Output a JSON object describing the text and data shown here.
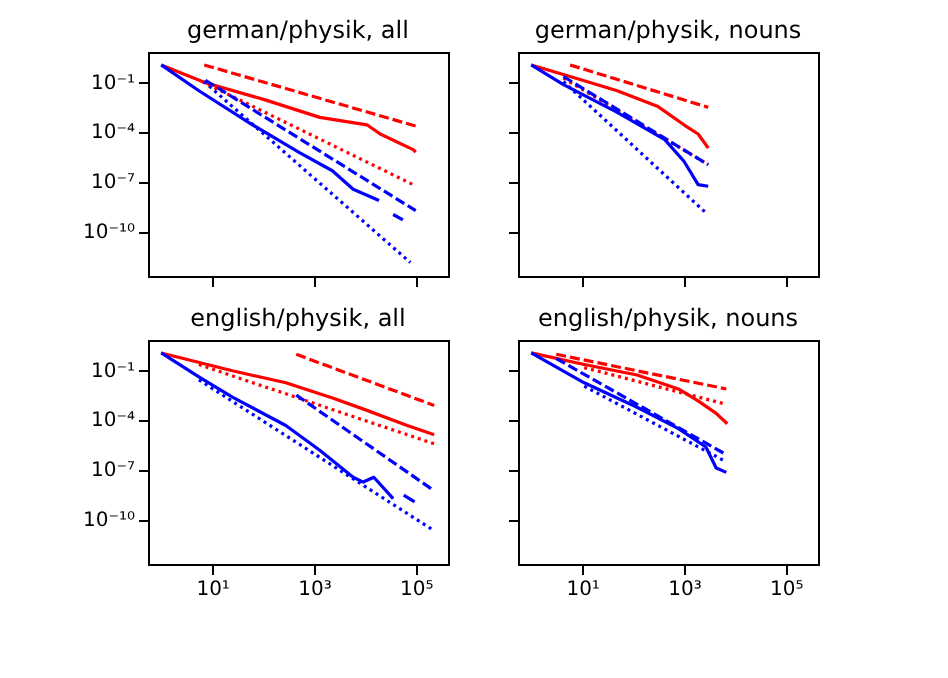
{
  "chart_data": [
    {
      "type": "line",
      "title": "german/physik, all",
      "log": "xy",
      "xlim": [
        0.55,
        430000
      ],
      "ylim": [
        2e-13,
        6
      ],
      "xticks": [
        {
          "value": 10,
          "label": null
        },
        {
          "value": 1000,
          "label": null
        },
        {
          "value": 100000,
          "label": null
        }
      ],
      "yticks": [
        {
          "value": 0.1,
          "label": "10⁻¹"
        },
        {
          "value": 0.0001,
          "label": "10⁻⁴"
        },
        {
          "value": 1e-07,
          "label": "10⁻⁷"
        },
        {
          "value": 1e-10,
          "label": "10⁻¹⁰"
        }
      ],
      "tick_labels": "y",
      "series": [
        {
          "color": "#ff0000",
          "line_style": "solid",
          "x": [
            1,
            7.4,
            110,
            1300,
            11000,
            20000,
            89000,
            100000
          ],
          "values": [
            1,
            0.085,
            0.0079,
            0.0007,
            0.00025,
            7e-05,
            8e-06,
            5.6e-06
          ]
        },
        {
          "color": "#ff0000",
          "line_style": "dashed",
          "x": [
            7,
            100000
          ],
          "values": [
            1,
            0.00021
          ]
        },
        {
          "color": "#ff0000",
          "line_style": "dotted",
          "x": [
            6.3,
            89000
          ],
          "values": [
            0.1,
            6.3e-08
          ]
        },
        {
          "color": "#0000ff",
          "line_style": "solid",
          "x": [
            1,
            5.5,
            62,
            510,
            2300,
            5900,
            19000
          ],
          "values": [
            1,
            0.028,
            0.00025,
            5.5e-06,
            4.3e-07,
            3.3e-08,
            7e-09
          ]
        },
        {
          "color": "#0000ff",
          "line_style": "dashed",
          "x": [
            7.4,
            100000
          ],
          "values": [
            0.12,
            1.7e-09
          ]
        },
        {
          "color": "#0000ff",
          "line_style": "dotted",
          "x": [
            6.9,
            78000
          ],
          "values": [
            0.1,
            1.3e-12
          ]
        },
        {
          "color": "#0000ff",
          "line_style": "solid",
          "x": [
            36000,
            56000
          ],
          "values": [
            1e-09,
            4.7e-10
          ]
        }
      ]
    },
    {
      "type": "line",
      "title": "german/physik, nouns",
      "log": "xy",
      "xlim": [
        0.55,
        430000
      ],
      "ylim": [
        2e-13,
        6
      ],
      "xticks": [
        {
          "value": 10,
          "label": null
        },
        {
          "value": 1000,
          "label": null
        },
        {
          "value": 100000,
          "label": null
        }
      ],
      "yticks": [
        {
          "value": 0.1,
          "label": null
        },
        {
          "value": 0.0001,
          "label": null
        },
        {
          "value": 1e-07,
          "label": null
        },
        {
          "value": 1e-10,
          "label": null
        }
      ],
      "tick_labels": false,
      "series": [
        {
          "color": "#ff0000",
          "line_style": "solid",
          "x": [
            1,
            5.8,
            49,
            300,
            1000,
            1900,
            3000
          ],
          "values": [
            1,
            0.2,
            0.028,
            0.0033,
            0.00025,
            7e-05,
            1e-05
          ]
        },
        {
          "color": "#ff0000",
          "line_style": "dashed",
          "x": [
            5.8,
            3000
          ],
          "values": [
            1,
            0.0028
          ]
        },
        {
          "color": "#ff0000",
          "line_style": "dotted",
          "x": [
            4.3,
            3000
          ],
          "values": [
            0.16,
            1e-06
          ]
        },
        {
          "color": "#0000ff",
          "line_style": "solid",
          "x": [
            1,
            4.3,
            49,
            420,
            1000,
            1900,
            3000
          ],
          "values": [
            1,
            0.066,
            0.0014,
            3.2e-05,
            1.6e-06,
            6.3e-08,
            5e-08
          ]
        },
        {
          "color": "#0000ff",
          "line_style": "dashed",
          "x": [
            4.3,
            3000
          ],
          "values": [
            0.2,
            1e-06
          ]
        },
        {
          "color": "#0000ff",
          "line_style": "dotted",
          "x": [
            4.3,
            2600
          ],
          "values": [
            0.1,
            1.4e-09
          ]
        }
      ]
    },
    {
      "type": "line",
      "title": "english/physik, all",
      "log": "xy",
      "xlim": [
        0.55,
        430000
      ],
      "ylim": [
        2e-13,
        6
      ],
      "xticks": [
        {
          "value": 10,
          "label": "10¹"
        },
        {
          "value": 1000,
          "label": "10³"
        },
        {
          "value": 100000,
          "label": "10⁵"
        }
      ],
      "yticks": [
        {
          "value": 0.1,
          "label": "10⁻¹"
        },
        {
          "value": 0.0001,
          "label": "10⁻⁴"
        },
        {
          "value": 1e-07,
          "label": "10⁻⁷"
        },
        {
          "value": 1e-10,
          "label": "10⁻¹⁰"
        }
      ],
      "series": [
        {
          "color": "#ff0000",
          "line_style": "solid",
          "x": [
            1,
            25,
            280,
            2400,
            11000,
            68000,
            230000
          ],
          "values": [
            1,
            0.085,
            0.016,
            0.0019,
            0.00035,
            4.3e-05,
            1.2e-05
          ]
        },
        {
          "color": "#ff0000",
          "line_style": "dashed",
          "x": [
            450,
            230000
          ],
          "values": [
            0.83,
            0.00069
          ]
        },
        {
          "color": "#ff0000",
          "line_style": "dotted",
          "x": [
            5.5,
            230000
          ],
          "values": [
            0.2,
            3.4e-06
          ]
        },
        {
          "color": "#0000ff",
          "line_style": "solid",
          "x": [
            1,
            5.5,
            25,
            280,
            1300,
            5900,
            9300,
            15000,
            36000
          ],
          "values": [
            1,
            0.036,
            0.0022,
            4.3e-05,
            1.4e-06,
            3.3e-08,
            1.7e-08,
            3.3e-08,
            1.7e-09
          ]
        },
        {
          "color": "#0000ff",
          "line_style": "dashed",
          "x": [
            450,
            230000
          ],
          "values": [
            0.0029,
            5.1e-09
          ]
        },
        {
          "color": "#0000ff",
          "line_style": "dotted",
          "x": [
            5.5,
            230000
          ],
          "values": [
            0.024,
            2e-11
          ]
        },
        {
          "color": "#0000ff",
          "line_style": "solid",
          "x": [
            58000,
            95000
          ],
          "values": [
            2.8e-09,
            1.1e-09
          ]
        }
      ]
    },
    {
      "type": "line",
      "title": "english/physik, nouns",
      "log": "xy",
      "xlim": [
        0.55,
        430000
      ],
      "ylim": [
        2e-13,
        6
      ],
      "xticks": [
        {
          "value": 10,
          "label": "10¹"
        },
        {
          "value": 1000,
          "label": "10³"
        },
        {
          "value": 100000,
          "label": "10⁵"
        }
      ],
      "yticks": [
        {
          "value": 0.1,
          "label": null
        },
        {
          "value": 0.0001,
          "label": null
        },
        {
          "value": 1e-07,
          "label": null
        },
        {
          "value": 1e-10,
          "label": null
        }
      ],
      "tick_labels": "x",
      "series": [
        {
          "color": "#ff0000",
          "line_style": "solid",
          "x": [
            1,
            11,
            120,
            780,
            1900,
            4300,
            7100
          ],
          "values": [
            1,
            0.2,
            0.047,
            0.0068,
            0.0013,
            0.00023,
            5.5e-05
          ]
        },
        {
          "color": "#ff0000",
          "line_style": "dashed",
          "x": [
            3.1,
            6800
          ],
          "values": [
            0.83,
            0.0068
          ]
        },
        {
          "color": "#ff0000",
          "line_style": "dotted",
          "x": [
            11,
            6800
          ],
          "values": [
            0.13,
            0.00081
          ]
        },
        {
          "color": "#0000ff",
          "line_style": "solid",
          "x": [
            1,
            11,
            120,
            780,
            2700,
            4300,
            6800
          ],
          "values": [
            1,
            0.016,
            0.00054,
            2.8e-05,
            2.2e-06,
            1.2e-07,
            6.5e-08
          ]
        },
        {
          "color": "#0000ff",
          "line_style": "dashed",
          "x": [
            3.1,
            6800
          ],
          "values": [
            0.46,
            7.6e-07
          ]
        },
        {
          "color": "#0000ff",
          "line_style": "dotted",
          "x": [
            11,
            6800
          ],
          "values": [
            0.01,
            2.8e-07
          ]
        }
      ]
    }
  ]
}
